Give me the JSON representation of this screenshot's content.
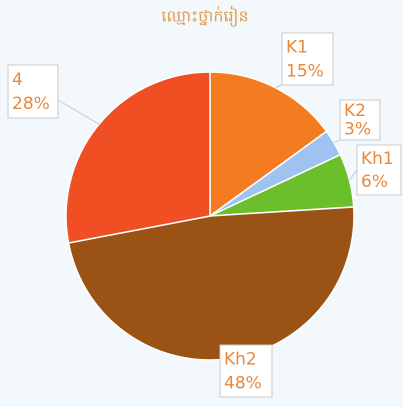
{
  "chart_data": {
    "type": "pie",
    "title": "ឈ្មោះថ្នាក់រៀន",
    "categories": [
      "K1",
      "K2",
      "Kh1",
      "Kh2",
      "4"
    ],
    "values": [
      15,
      3,
      6,
      48,
      28
    ],
    "value_labels": [
      "15%",
      "3%",
      "6%",
      "48%",
      "28%"
    ],
    "colors": [
      "#f47b20",
      "#9ec3f0",
      "#6abf2a",
      "#9a5314",
      "#f04e23"
    ]
  }
}
